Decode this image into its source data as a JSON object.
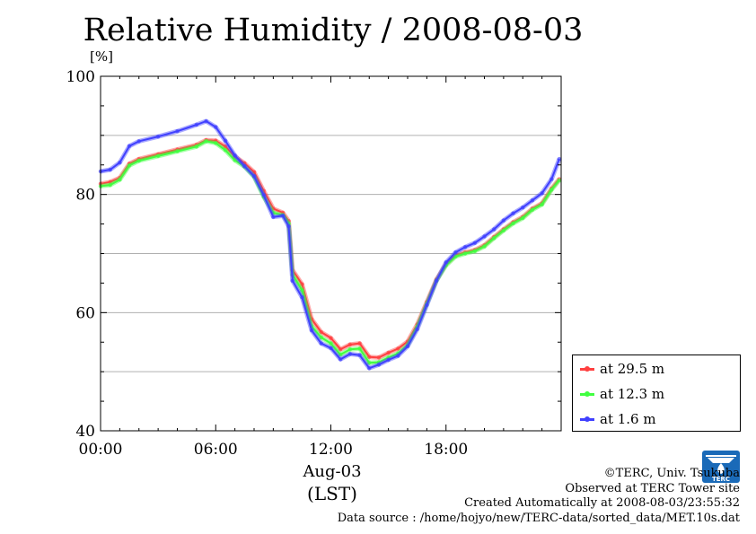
{
  "page": {
    "title": "Relative Humidity / 2008-08-03",
    "unit_label": "[%]",
    "x_date_label": "Aug-03",
    "x_zone_label": "(LST)"
  },
  "legend": {
    "items": [
      {
        "label": "at 29.5 m",
        "color": "#ff4040"
      },
      {
        "label": "at 12.3 m",
        "color": "#40ff40"
      },
      {
        "label": "at 1.6 m",
        "color": "#4040ff"
      }
    ]
  },
  "credits": {
    "copyright": "©TERC, Univ. Tsukuba",
    "site": "Observed at TERC Tower site",
    "created": "Created Automatically at 2008-08-03/23:55:32",
    "source": "Data source : /home/hojyo/new/TERC-data/sorted_data/MET.10s.dat",
    "logo_text": "TERC"
  },
  "chart_data": {
    "type": "line",
    "title": "Relative Humidity / 2008-08-03",
    "ylabel": "[%]",
    "xlabel": "Aug-03 (LST)",
    "xlim": [
      0,
      24
    ],
    "ylim": [
      40,
      100
    ],
    "x_tick_labels": [
      "00:00",
      "06:00",
      "12:00",
      "18:00"
    ],
    "x_tick_values": [
      0,
      6,
      12,
      18
    ],
    "y_tick_values": [
      40,
      60,
      80,
      100
    ],
    "grid": true,
    "legend_position": "bottom-right outside plot",
    "x": [
      0,
      0.5,
      1,
      1.5,
      2,
      3,
      4,
      5,
      5.5,
      6,
      6.5,
      7,
      7.5,
      8,
      8.5,
      9,
      9.5,
      9.8,
      10,
      10.5,
      11,
      11.5,
      12,
      12.5,
      13,
      13.5,
      14,
      14.5,
      15,
      15.5,
      16,
      16.5,
      17,
      17.5,
      18,
      18.5,
      19,
      19.5,
      20,
      20.5,
      21,
      21.5,
      22,
      22.5,
      23,
      23.5,
      23.9
    ],
    "series": [
      {
        "name": "at 29.5 m",
        "color": "#ff4040",
        "values": [
          81.8,
          82.1,
          82.8,
          85.2,
          86.0,
          86.8,
          87.6,
          88.4,
          89.2,
          89.1,
          88.1,
          86.4,
          85.3,
          83.8,
          80.6,
          77.6,
          76.9,
          75.5,
          67.2,
          64.8,
          58.9,
          56.7,
          55.7,
          53.8,
          54.6,
          54.8,
          52.5,
          52.4,
          53.2,
          53.9,
          55.1,
          58.0,
          61.8,
          65.6,
          68.2,
          69.7,
          70.2,
          70.6,
          71.4,
          72.8,
          74.1,
          75.3,
          76.2,
          77.6,
          78.5,
          81.0,
          82.6
        ]
      },
      {
        "name": "at 12.3 m",
        "color": "#40ff40",
        "values": [
          81.4,
          81.6,
          82.5,
          84.9,
          85.7,
          86.5,
          87.3,
          88.1,
          89.0,
          88.7,
          87.5,
          85.8,
          84.7,
          83.0,
          79.6,
          76.9,
          76.5,
          75.1,
          66.4,
          63.8,
          57.7,
          55.8,
          54.8,
          52.9,
          53.8,
          53.9,
          51.5,
          51.6,
          52.4,
          53.1,
          54.5,
          57.6,
          61.5,
          65.4,
          68.0,
          69.5,
          70.0,
          70.4,
          71.2,
          72.6,
          73.9,
          75.1,
          76.0,
          77.4,
          78.3,
          80.8,
          82.4
        ]
      },
      {
        "name": "at 1.6 m",
        "color": "#4040ff",
        "values": [
          83.9,
          84.2,
          85.4,
          88.2,
          89.0,
          89.8,
          90.7,
          91.8,
          92.4,
          91.4,
          89.1,
          86.6,
          84.8,
          83.1,
          79.9,
          76.2,
          76.4,
          74.6,
          65.4,
          62.6,
          57.0,
          54.8,
          54.0,
          52.1,
          53.0,
          52.8,
          50.6,
          51.2,
          52.0,
          52.7,
          54.3,
          57.2,
          61.3,
          65.4,
          68.5,
          70.2,
          71.1,
          71.8,
          72.9,
          74.1,
          75.6,
          76.8,
          77.8,
          79.0,
          80.2,
          82.6,
          86.0
        ]
      }
    ]
  }
}
